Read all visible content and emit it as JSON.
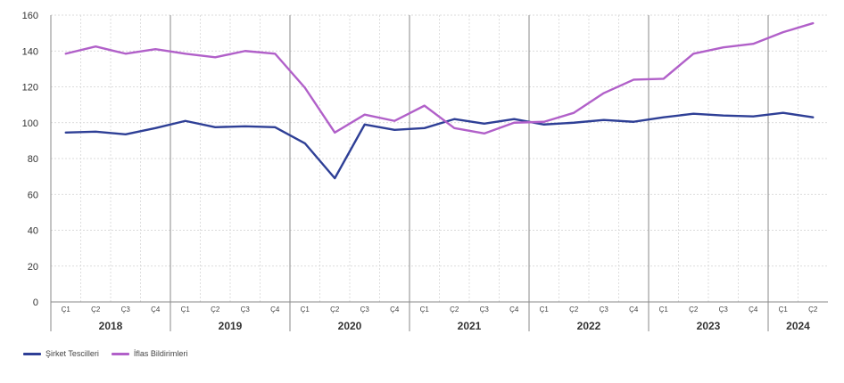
{
  "chart_data": {
    "type": "line",
    "title": "",
    "xlabel": "",
    "ylabel": "",
    "ylim": [
      0,
      160
    ],
    "yticks": [
      0,
      20,
      40,
      60,
      80,
      100,
      120,
      140,
      160
    ],
    "grid": true,
    "legend_position": "bottom-left",
    "years": [
      "2018",
      "2019",
      "2020",
      "2021",
      "2022",
      "2023",
      "2024"
    ],
    "quarters_per_year": [
      4,
      4,
      4,
      4,
      4,
      4,
      2
    ],
    "categories": [
      "Ç1",
      "Ç2",
      "Ç3",
      "Ç4",
      "Ç1",
      "Ç2",
      "Ç3",
      "Ç4",
      "Ç1",
      "Ç2",
      "Ç3",
      "Ç4",
      "Ç1",
      "Ç2",
      "Ç3",
      "Ç4",
      "Ç1",
      "Ç2",
      "Ç3",
      "Ç4",
      "Ç1",
      "Ç2",
      "Ç3",
      "Ç4",
      "Ç1",
      "Ç2"
    ],
    "series": [
      {
        "name": "Şirket Tescilleri",
        "color": "#2e3f96",
        "values": [
          94.5,
          95,
          93.5,
          97,
          101,
          97.5,
          98,
          97.5,
          88.5,
          69,
          99,
          96,
          97,
          102,
          99.5,
          102,
          99,
          100,
          101.5,
          100.5,
          103,
          105,
          104,
          103.5,
          105.5,
          103
        ]
      },
      {
        "name": "İflas Bildirimleri",
        "color": "#b160c9",
        "values": [
          138.5,
          142.5,
          138.5,
          141,
          138.5,
          136.5,
          140,
          138.5,
          119.5,
          94.5,
          104.5,
          101,
          109.5,
          97,
          94,
          100,
          100.5,
          105.5,
          116.5,
          124,
          124.5,
          138.5,
          142,
          144,
          150.5,
          155.5
        ]
      }
    ]
  }
}
